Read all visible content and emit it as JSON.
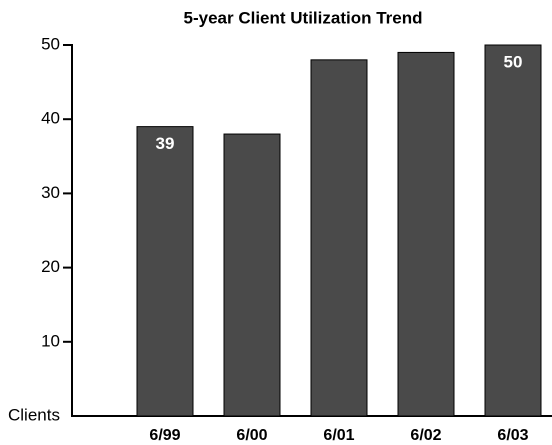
{
  "chart_data": {
    "type": "bar",
    "title": "5-year Client Utilization Trend",
    "y_axis_label": "Clients",
    "categories": [
      "6/99",
      "6/00",
      "6/01",
      "6/02",
      "6/03"
    ],
    "values": [
      39,
      38,
      48,
      49,
      50
    ],
    "value_labels": [
      "39",
      null,
      null,
      null,
      "50"
    ],
    "color": "#4a4a4a",
    "ylim": [
      0,
      50
    ],
    "yticks": [
      10,
      20,
      30,
      40,
      50
    ],
    "grid": false
  }
}
